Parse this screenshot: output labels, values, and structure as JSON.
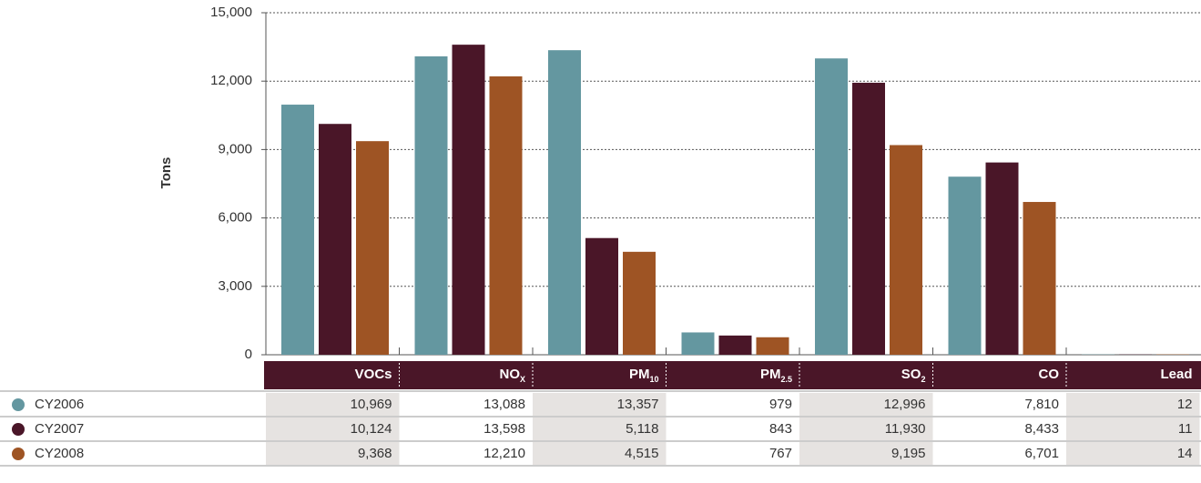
{
  "chart_data": {
    "type": "bar",
    "y_label": "Tons",
    "categories": [
      {
        "label": "VOCs"
      },
      {
        "label": "NO",
        "sub": "X"
      },
      {
        "label": "PM",
        "sub": "10"
      },
      {
        "label": "PM",
        "sub": "2.5"
      },
      {
        "label": "SO",
        "sub": "2"
      },
      {
        "label": "CO"
      },
      {
        "label": "Lead"
      }
    ],
    "series": [
      {
        "name": "CY2006",
        "color": "#6497a0",
        "values": [
          10969,
          13088,
          13357,
          979,
          12996,
          7810,
          12
        ],
        "value_labels": [
          "10,969",
          "13,088",
          "13,357",
          "979",
          "12,996",
          "7,810",
          "12"
        ]
      },
      {
        "name": "CY2007",
        "color": "#4a1628",
        "values": [
          10124,
          13598,
          5118,
          843,
          11930,
          8433,
          11
        ],
        "value_labels": [
          "10,124",
          "13,598",
          "5,118",
          "843",
          "11,930",
          "8,433",
          "11"
        ]
      },
      {
        "name": "CY2008",
        "color": "#9e5424",
        "values": [
          9368,
          12210,
          4515,
          767,
          9195,
          6701,
          14
        ],
        "value_labels": [
          "9,368",
          "12,210",
          "4,515",
          "767",
          "9,195",
          "6,701",
          "14"
        ]
      }
    ],
    "ylim": [
      0,
      15000
    ],
    "yticks": [
      0,
      {
        "value": 3000,
        "label": "3,000"
      },
      {
        "value": 6000,
        "label": "6,000"
      },
      {
        "value": 9000,
        "label": "9,000"
      },
      {
        "value": 12000,
        "label": "12,000"
      },
      {
        "value": 15000,
        "label": "15,000"
      }
    ],
    "grid": true
  }
}
